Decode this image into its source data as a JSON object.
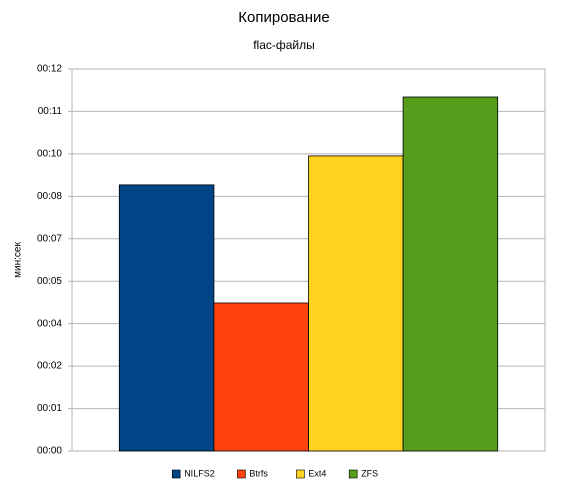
{
  "chart_data": {
    "type": "bar",
    "title": "Копирование",
    "subtitle": "flac-файлы",
    "y_label": "мин:сек",
    "categories": [
      null
    ],
    "series": [
      {
        "name": "NILFS2",
        "color": "#004586",
        "values": [
          8.36
        ]
      },
      {
        "name": "Btrfs",
        "color": "#ff420e",
        "values": [
          4.65
        ]
      },
      {
        "name": "Ext4",
        "color": "#ffd320",
        "values": [
          9.27
        ]
      },
      {
        "name": "ZFS",
        "color": "#579d1c",
        "values": [
          11.12
        ]
      }
    ],
    "ylim": [
      0,
      12
    ],
    "yticks": [
      {
        "value": 0,
        "label": "00:00"
      },
      {
        "value": 1.333,
        "label": "00:01"
      },
      {
        "value": 2.667,
        "label": "00:02"
      },
      {
        "value": 4,
        "label": "00:04"
      },
      {
        "value": 5.333,
        "label": "00:05"
      },
      {
        "value": 6.667,
        "label": "00:07"
      },
      {
        "value": 8,
        "label": "00:08"
      },
      {
        "value": 9.333,
        "label": "00:10"
      },
      {
        "value": 10.667,
        "label": "00:11"
      },
      {
        "value": 12,
        "label": "00:12"
      }
    ],
    "grid": true,
    "legend": "bottom"
  }
}
